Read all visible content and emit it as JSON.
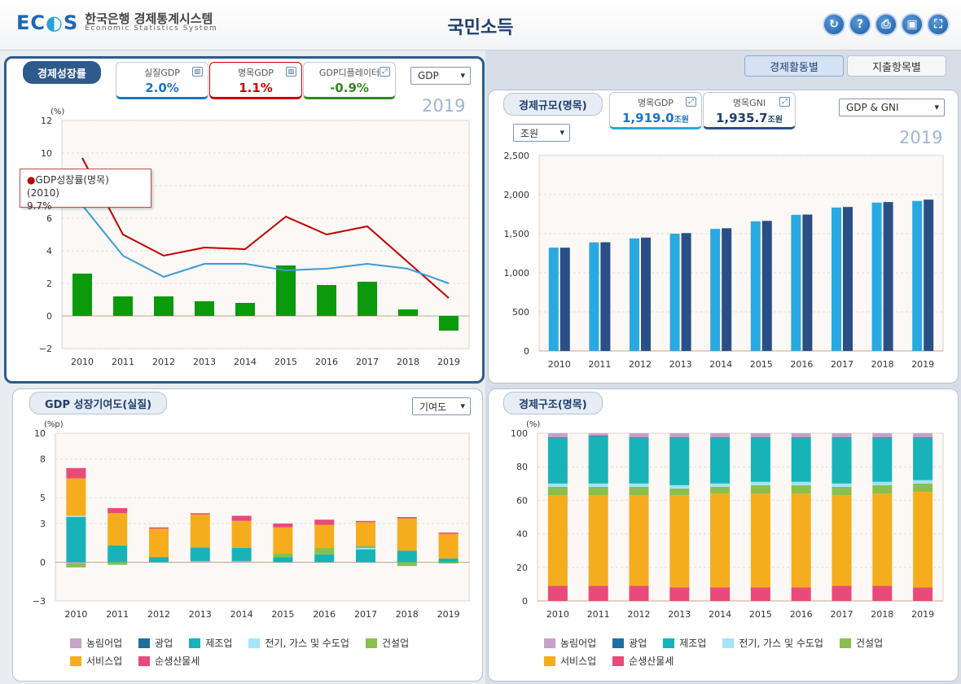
{
  "header": {
    "logo_mark": "EC",
    "logo_mark_end": "S",
    "logo_ko": "한국은행 경제통계시스템",
    "logo_en": "Economic Statistics System",
    "title": "국민소득"
  },
  "tabs": [
    {
      "label": "경제활동별",
      "active": true
    },
    {
      "label": "지출항목별",
      "active": false
    }
  ],
  "panels": {
    "growth": {
      "title": "경제성장률",
      "kpis": [
        {
          "label": "실질GDP",
          "value": "2.0%",
          "color": "#1e73c8"
        },
        {
          "label": "명목GDP",
          "value": "1.1%",
          "color": "#cc0000"
        },
        {
          "label": "GDP디플레이터",
          "value": "-0.9%",
          "color": "#2f8a1f"
        }
      ],
      "select_value": "GDP",
      "year": "2019",
      "unit": "(%)",
      "tooltip": {
        "series": "GDP성장률(명목) (2010)",
        "value": "9.7%"
      }
    },
    "scale": {
      "title": "경제규모(명목)",
      "kpis": [
        {
          "label": "명목GDP",
          "value": "1,919.0",
          "unit": "조원",
          "color": "#1e73c8"
        },
        {
          "label": "명목GNI",
          "value": "1,935.7",
          "unit": "조원",
          "color": "#1f3f6d"
        }
      ],
      "select_value": "GDP & GNI",
      "unit_select": "조원",
      "year": "2019"
    },
    "contrib": {
      "title": "GDP 성장기여도(실질)",
      "select_value": "기여도",
      "unit": "(%p)"
    },
    "structure": {
      "title": "경제구조(명목)",
      "unit": "(%)"
    }
  },
  "legend_items": [
    {
      "name": "농림어업",
      "color": "#c8a2c8"
    },
    {
      "name": "광업",
      "color": "#1d6ea0"
    },
    {
      "name": "제조업",
      "color": "#17b3b8"
    },
    {
      "name": "전기, 가스 및 수도업",
      "color": "#a3e4f7"
    },
    {
      "name": "건설업",
      "color": "#8bbf4d"
    },
    {
      "name": "서비스업",
      "color": "#f5ad1e"
    },
    {
      "name": "순생산물세",
      "color": "#e84a7a"
    }
  ],
  "chart_data": [
    {
      "id": "growth",
      "type": "bar",
      "categories": [
        "2010",
        "2011",
        "2012",
        "2013",
        "2014",
        "2015",
        "2016",
        "2017",
        "2018",
        "2019"
      ],
      "ylim": [
        -2,
        12
      ],
      "yticks": [
        -2,
        0,
        2,
        4,
        6,
        8,
        10,
        12
      ],
      "ylabel": "(%)",
      "series": [
        {
          "type": "bar",
          "color": "#0b9a0b",
          "values": [
            2.6,
            1.2,
            1.2,
            0.9,
            0.8,
            3.1,
            1.9,
            2.1,
            0.4,
            -0.9
          ]
        },
        {
          "type": "line",
          "color": "#c00000",
          "values": [
            9.7,
            5.0,
            3.7,
            4.2,
            4.1,
            6.1,
            5.0,
            5.5,
            3.3,
            1.1
          ]
        },
        {
          "type": "line",
          "color": "#3d9bd6",
          "values": [
            6.8,
            3.7,
            2.4,
            3.2,
            3.2,
            2.8,
            2.9,
            3.2,
            2.9,
            2.0
          ]
        }
      ]
    },
    {
      "id": "scale",
      "type": "bar",
      "categories": [
        "2010",
        "2011",
        "2012",
        "2013",
        "2014",
        "2015",
        "2016",
        "2017",
        "2018",
        "2019"
      ],
      "ylim": [
        0,
        2500
      ],
      "yticks": [
        0,
        500,
        1000,
        1500,
        2000,
        2500
      ],
      "ytick_labels": [
        "0",
        "500",
        "1,000",
        "1,500",
        "2,000",
        "2,500"
      ],
      "series": [
        {
          "color": "#29a9e1",
          "values": [
            1322,
            1389,
            1440,
            1500,
            1562,
            1658,
            1741,
            1835,
            1898,
            1919
          ]
        },
        {
          "color": "#2a4f86",
          "values": [
            1321,
            1391,
            1450,
            1508,
            1570,
            1664,
            1745,
            1842,
            1905,
            1936
          ]
        }
      ]
    },
    {
      "id": "contrib",
      "type": "bar",
      "stacked": true,
      "categories": [
        "2010",
        "2011",
        "2012",
        "2013",
        "2014",
        "2015",
        "2016",
        "2017",
        "2018",
        "2019"
      ],
      "ylim": [
        -3,
        10
      ],
      "yticks": [
        -3,
        0,
        3,
        5,
        8,
        10
      ],
      "ylabel": "(%p)",
      "series": [
        {
          "name": "농림어업",
          "color": "#c8a2c8",
          "values": [
            -0.1,
            0,
            0,
            0.1,
            0.1,
            0,
            0,
            0,
            0,
            0
          ]
        },
        {
          "name": "광업",
          "color": "#1d6ea0",
          "values": [
            0,
            0,
            0,
            0,
            0,
            0,
            0,
            0,
            0,
            0
          ]
        },
        {
          "name": "제조업",
          "color": "#17b3b8",
          "values": [
            3.5,
            1.3,
            0.4,
            1.0,
            1.0,
            0.4,
            0.6,
            1.0,
            0.9,
            0.3
          ]
        },
        {
          "name": "전기, 가스 및 수도업",
          "color": "#a3e4f7",
          "values": [
            0.1,
            0,
            0,
            0,
            0,
            0,
            0,
            0.1,
            0,
            0
          ]
        },
        {
          "name": "건설업",
          "color": "#8bbf4d",
          "values": [
            -0.3,
            -0.2,
            0,
            0.1,
            0,
            0.3,
            0.5,
            0.2,
            -0.3,
            -0.1
          ]
        },
        {
          "name": "서비스업",
          "color": "#f5ad1e",
          "values": [
            2.9,
            2.5,
            2.2,
            2.5,
            2.1,
            2.0,
            1.8,
            1.8,
            2.5,
            1.9
          ]
        },
        {
          "name": "순생산물세",
          "color": "#e84a7a",
          "values": [
            0.8,
            0.4,
            0.1,
            0.1,
            0.4,
            0.3,
            0.4,
            0.1,
            0.1,
            0.1
          ]
        }
      ]
    },
    {
      "id": "structure",
      "type": "bar",
      "stacked": true,
      "categories": [
        "2010",
        "2011",
        "2012",
        "2013",
        "2014",
        "2015",
        "2016",
        "2017",
        "2018",
        "2019"
      ],
      "ylim": [
        0,
        100
      ],
      "yticks": [
        0,
        20,
        40,
        60,
        80,
        100
      ],
      "ylabel": "(%)",
      "series": [
        {
          "name": "순생산물세",
          "color": "#e84a7a",
          "values": [
            9,
            9,
            9,
            8,
            8,
            8,
            8,
            9,
            9,
            8
          ]
        },
        {
          "name": "서비스업",
          "color": "#f5ad1e",
          "values": [
            54,
            54,
            54,
            55,
            56,
            56,
            56,
            54,
            55,
            57
          ]
        },
        {
          "name": "건설업",
          "color": "#8bbf4d",
          "values": [
            5,
            5,
            5,
            4,
            4,
            5,
            5,
            5,
            5,
            5
          ]
        },
        {
          "name": "전기, 가스 및 수도업",
          "color": "#a3e4f7",
          "values": [
            2,
            2,
            2,
            2,
            2,
            2,
            2,
            2,
            2,
            2
          ]
        },
        {
          "name": "제조업",
          "color": "#17b3b8",
          "values": [
            27,
            28,
            27,
            28,
            27,
            26,
            26,
            27,
            26,
            25
          ]
        },
        {
          "name": "광업",
          "color": "#1d6ea0",
          "values": [
            0.5,
            0.5,
            0.5,
            0.5,
            0.5,
            0.5,
            0.5,
            0.5,
            0.5,
            0.5
          ]
        },
        {
          "name": "농림어업",
          "color": "#c8a2c8",
          "values": [
            2.5,
            1.5,
            2.5,
            2.5,
            2.5,
            2.5,
            2.5,
            2.5,
            2.5,
            2.5
          ]
        }
      ]
    }
  ]
}
